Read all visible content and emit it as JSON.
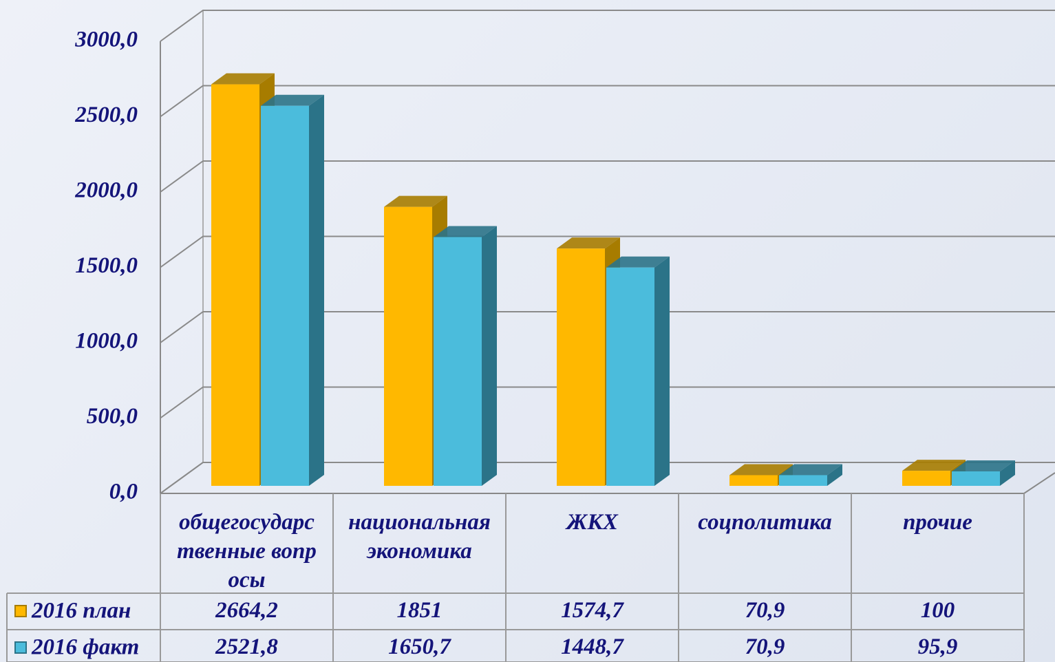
{
  "chart_data": {
    "type": "bar3d",
    "categories": [
      "общегосударственные вопросы",
      "национальная экономика",
      "ЖКХ",
      "соцполитика",
      "прочие"
    ],
    "series": [
      {
        "name": "2016 план",
        "color": "#ffb800",
        "side": "#a77c00",
        "values": [
          2664.2,
          1851,
          1574.7,
          70.9,
          100
        ],
        "value_labels": [
          "2664,2",
          "1851",
          "1574,7",
          "70,9",
          "100"
        ]
      },
      {
        "name": "2016 факт",
        "color": "#4bbcdc",
        "side": "#2b7388",
        "values": [
          2521.8,
          1650.7,
          1448.7,
          70.9,
          95.9
        ],
        "value_labels": [
          "2521,8",
          "1650,7",
          "1448,7",
          "70,9",
          "95,9"
        ]
      }
    ],
    "ylim": [
      0,
      3000
    ],
    "yticks": [
      {
        "value": 0,
        "label": "0,0"
      },
      {
        "value": 500,
        "label": "500,0"
      },
      {
        "value": 1000,
        "label": "1000,0"
      },
      {
        "value": 1500,
        "label": "1500,0"
      },
      {
        "value": 2000,
        "label": "2000,0"
      },
      {
        "value": 2500,
        "label": "2500,0"
      },
      {
        "value": 3000,
        "label": "3000,0"
      }
    ],
    "grid": true,
    "legend": "table"
  }
}
